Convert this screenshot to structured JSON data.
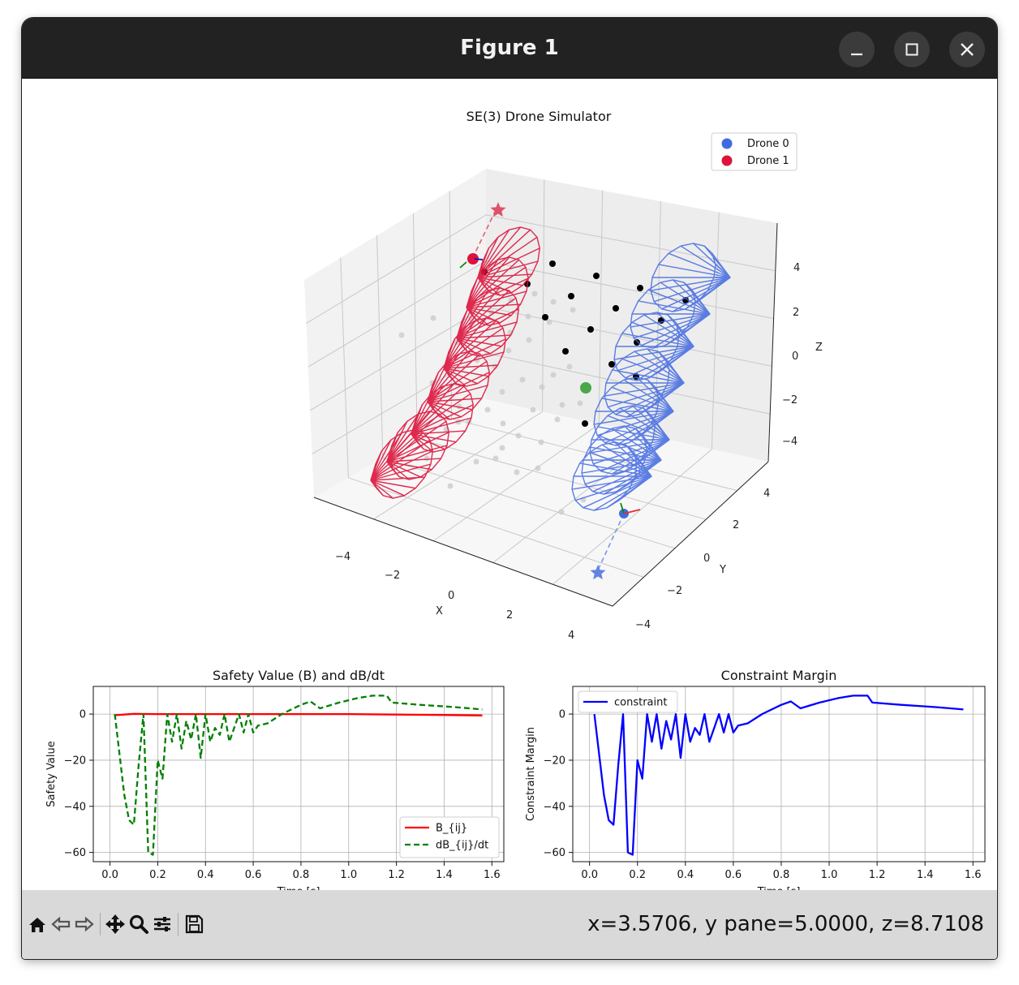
{
  "window": {
    "title": "Figure 1",
    "controls": {
      "minimize": "minimize",
      "maximize": "maximize",
      "close": "close"
    }
  },
  "figure": {
    "main_title": "SE(3) Drone Simulator",
    "legend": [
      {
        "label": "Drone 0",
        "color": "#4169e1"
      },
      {
        "label": "Drone 1",
        "color": "#dc143c"
      }
    ],
    "axis3d": {
      "xlabel": "X",
      "ylabel": "Y",
      "zlabel": "Z",
      "xticks": [
        "−4",
        "−2",
        "0",
        "2",
        "4"
      ],
      "yticks": [
        "−4",
        "−2",
        "0",
        "2",
        "4"
      ],
      "zticks": [
        "−4",
        "−2",
        "0",
        "2",
        "4"
      ]
    }
  },
  "chart_data": [
    {
      "type": "line",
      "title": "Safety Value (B) and dB/dt",
      "xlabel": "Time [s]",
      "ylabel": "Safety Value",
      "xlim": [
        -0.07,
        1.65
      ],
      "ylim": [
        -64,
        12
      ],
      "xticks": [
        "0.0",
        "0.2",
        "0.4",
        "0.6",
        "0.8",
        "1.0",
        "1.2",
        "1.4",
        "1.6"
      ],
      "yticks": [
        "0",
        "−20",
        "−40",
        "−60"
      ],
      "grid": true,
      "legend_position": "lower-right",
      "series": [
        {
          "name": "B_{ij}",
          "color": "#ff0000",
          "style": "solid",
          "x": [
            0.02,
            0.1,
            0.2,
            0.4,
            0.6,
            0.8,
            1.0,
            1.2,
            1.4,
            1.56
          ],
          "y": [
            -0.5,
            0.1,
            0,
            0,
            0,
            0,
            0,
            -0.2,
            -0.4,
            -0.6
          ]
        },
        {
          "name": "dB_{ij}/dt",
          "color": "#008000",
          "style": "dashed",
          "x": [
            0.02,
            0.06,
            0.08,
            0.1,
            0.12,
            0.14,
            0.16,
            0.18,
            0.2,
            0.22,
            0.24,
            0.26,
            0.28,
            0.3,
            0.32,
            0.34,
            0.36,
            0.38,
            0.4,
            0.42,
            0.44,
            0.46,
            0.48,
            0.5,
            0.52,
            0.54,
            0.56,
            0.58,
            0.6,
            0.62,
            0.66,
            0.72,
            0.8,
            0.84,
            0.88,
            0.96,
            1.04,
            1.1,
            1.16,
            1.18,
            1.3,
            1.45,
            1.56
          ],
          "y": [
            0,
            -35,
            -46,
            -48,
            -22,
            0,
            -60,
            -61,
            -20,
            -28,
            0,
            -12,
            0,
            -15,
            -3,
            -11,
            0,
            -19,
            0,
            -12,
            -6,
            -9,
            0,
            -12,
            -6,
            0,
            -8,
            0,
            -8,
            -5,
            -4,
            0,
            4,
            5.5,
            2.5,
            5,
            7,
            8,
            8,
            5,
            4,
            3,
            2
          ]
        }
      ]
    },
    {
      "type": "line",
      "title": "Constraint Margin",
      "xlabel": "Time [s]",
      "ylabel": "Constraint Margin",
      "xlim": [
        -0.07,
        1.65
      ],
      "ylim": [
        -64,
        12
      ],
      "xticks": [
        "0.0",
        "0.2",
        "0.4",
        "0.6",
        "0.8",
        "1.0",
        "1.2",
        "1.4",
        "1.6"
      ],
      "yticks": [
        "0",
        "−20",
        "−40",
        "−60"
      ],
      "grid": true,
      "legend_position": "upper-left",
      "series": [
        {
          "name": "constraint",
          "color": "#0000ff",
          "style": "solid",
          "x": [
            0.02,
            0.06,
            0.08,
            0.1,
            0.12,
            0.14,
            0.16,
            0.18,
            0.2,
            0.22,
            0.24,
            0.26,
            0.28,
            0.3,
            0.32,
            0.34,
            0.36,
            0.38,
            0.4,
            0.42,
            0.44,
            0.46,
            0.48,
            0.5,
            0.52,
            0.54,
            0.56,
            0.58,
            0.6,
            0.62,
            0.66,
            0.72,
            0.8,
            0.84,
            0.88,
            0.96,
            1.04,
            1.1,
            1.16,
            1.18,
            1.3,
            1.45,
            1.56
          ],
          "y": [
            0,
            -35,
            -46,
            -48,
            -22,
            0,
            -60,
            -61,
            -20,
            -28,
            0,
            -12,
            0,
            -15,
            -3,
            -11,
            0,
            -19,
            0,
            -12,
            -6,
            -9,
            0,
            -12,
            -6,
            0,
            -8,
            0,
            -8,
            -5,
            -4,
            0,
            4,
            5.5,
            2.5,
            5,
            7,
            8,
            8,
            5,
            4,
            3,
            2
          ]
        }
      ]
    }
  ],
  "toolbar": {
    "buttons": [
      "home-icon",
      "back-icon",
      "forward-icon",
      "pan-icon",
      "zoom-icon",
      "configure-icon",
      "save-icon"
    ],
    "coords": "x=3.5706, y pane=5.0000, z=8.7108"
  }
}
